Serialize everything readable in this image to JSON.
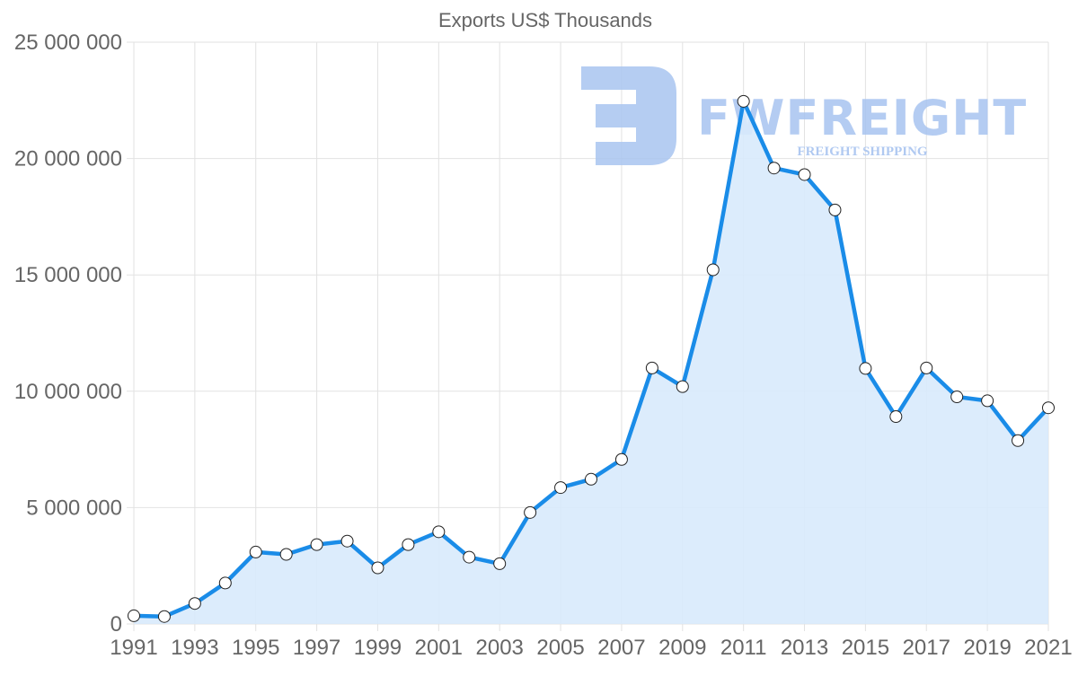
{
  "chart_data": {
    "type": "area",
    "title": "Exports US$ Thousands",
    "xlabel": "",
    "ylabel": "",
    "x": [
      1991,
      1992,
      1993,
      1994,
      1995,
      1996,
      1997,
      1998,
      1999,
      2000,
      2001,
      2002,
      2003,
      2004,
      2005,
      2006,
      2007,
      2008,
      2009,
      2010,
      2011,
      2012,
      2013,
      2014,
      2015,
      2016,
      2017,
      2018,
      2019,
      2020,
      2021
    ],
    "series": [
      {
        "name": "Exports US$ Thousands",
        "values": [
          350000,
          320000,
          880000,
          1760000,
          3090000,
          2990000,
          3410000,
          3560000,
          2410000,
          3410000,
          3960000,
          2870000,
          2590000,
          4790000,
          5860000,
          6220000,
          7070000,
          11000000,
          10200000,
          15220000,
          22460000,
          19590000,
          19310000,
          17790000,
          10980000,
          8910000,
          11000000,
          9760000,
          9590000,
          7880000,
          9290000
        ]
      }
    ],
    "ylim": [
      0,
      25000000
    ],
    "yticks": [
      0,
      5000000,
      10000000,
      15000000,
      20000000,
      25000000
    ],
    "ytick_labels": [
      "0",
      "5 000 000",
      "10 000 000",
      "15 000 000",
      "20 000 000",
      "25 000 000"
    ],
    "xtick_labels": [
      "1991",
      "1993",
      "1995",
      "1997",
      "1999",
      "2001",
      "2003",
      "2005",
      "2007",
      "2009",
      "2011",
      "2013",
      "2015",
      "2017",
      "2019",
      "2021"
    ],
    "grid": true,
    "legend": "none",
    "colors": {
      "line": "#1a8ce8",
      "fill": "#d8eafc",
      "point_fill": "#ffffff",
      "point_stroke": "#222222",
      "grid": "#e2e2e2",
      "text": "#666666"
    }
  },
  "watermark": {
    "brand": "FWFREIGHT",
    "tagline": "FREIGHT SHIPPING",
    "color": "#a8c4f0"
  }
}
